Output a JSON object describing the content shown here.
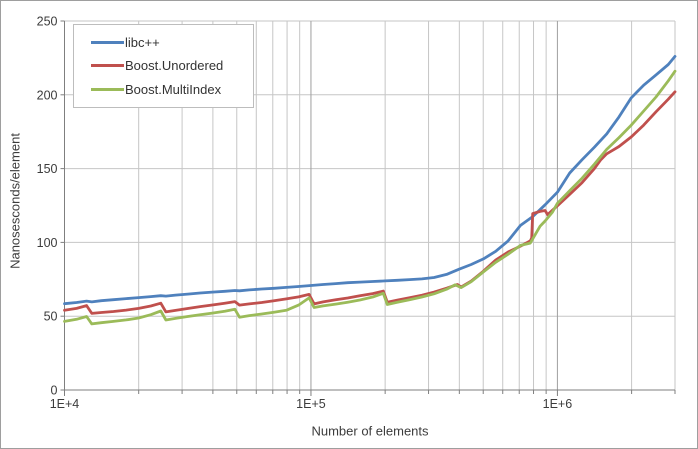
{
  "chart_data": {
    "type": "line",
    "title": "",
    "xlabel": "Number of elements",
    "ylabel": "Nanosesconds/element",
    "x_scale": "log",
    "x_min": 10000,
    "x_max": 3000000,
    "y_min": 0,
    "y_max": 250,
    "y_tick_step": 50,
    "x_tick_labels": [
      {
        "value": 10000,
        "label": "1E+4"
      },
      {
        "value": 100000,
        "label": "1E+5"
      },
      {
        "value": 1000000,
        "label": "1E+6"
      }
    ],
    "y_tick_labels": [
      "0",
      "50",
      "100",
      "150",
      "200",
      "250"
    ],
    "grid": {
      "minor_color": "#c6c6c6",
      "major_color": "#9f9f9f",
      "axis_color": "#7f7f7f",
      "text_color": "#3c3c3c",
      "grid_on": true
    },
    "legend_position": "top-left",
    "series": [
      {
        "name": "libc++",
        "color": "#4F81BD",
        "points": [
          [
            10000,
            58.5
          ],
          [
            11200,
            59.3
          ],
          [
            12289,
            60.2
          ],
          [
            12900,
            59.7
          ],
          [
            14100,
            60.5
          ],
          [
            15800,
            61.2
          ],
          [
            17800,
            61.9
          ],
          [
            20000,
            62.6
          ],
          [
            22400,
            63.3
          ],
          [
            24593,
            63.9
          ],
          [
            25800,
            63.6
          ],
          [
            28200,
            64.3
          ],
          [
            31600,
            65.0
          ],
          [
            35500,
            65.7
          ],
          [
            39800,
            66.3
          ],
          [
            44700,
            66.9
          ],
          [
            49157,
            67.4
          ],
          [
            51300,
            67.2
          ],
          [
            56200,
            67.8
          ],
          [
            63100,
            68.4
          ],
          [
            70800,
            68.9
          ],
          [
            79400,
            69.5
          ],
          [
            89100,
            70.1
          ],
          [
            100000,
            70.8
          ],
          [
            112000,
            71.5
          ],
          [
            126000,
            72.1
          ],
          [
            141000,
            72.7
          ],
          [
            158000,
            73.1
          ],
          [
            178000,
            73.5
          ],
          [
            200000,
            73.9
          ],
          [
            224000,
            74.3
          ],
          [
            251000,
            74.8
          ],
          [
            282000,
            75.3
          ],
          [
            316000,
            76.2
          ],
          [
            355000,
            78.3
          ],
          [
            398000,
            81.8
          ],
          [
            447000,
            85.0
          ],
          [
            501000,
            88.8
          ],
          [
            562000,
            94.0
          ],
          [
            631000,
            101.0
          ],
          [
            708000,
            111.5
          ],
          [
            794000,
            117.5
          ],
          [
            891000,
            125.5
          ],
          [
            1000000,
            134.0
          ],
          [
            1122000,
            147.0
          ],
          [
            1259000,
            156.0
          ],
          [
            1413000,
            164.5
          ],
          [
            1585000,
            173.5
          ],
          [
            1778000,
            185.0
          ],
          [
            1995000,
            198.0
          ],
          [
            2239000,
            206.5
          ],
          [
            2512000,
            213.5
          ],
          [
            2818000,
            220.5
          ],
          [
            3000000,
            226.0
          ]
        ]
      },
      {
        "name": "Boost.Unordered",
        "color": "#C0504D",
        "points": [
          [
            10000,
            54.0
          ],
          [
            11200,
            55.3
          ],
          [
            12289,
            57.2
          ],
          [
            12900,
            51.9
          ],
          [
            14100,
            52.5
          ],
          [
            15800,
            53.2
          ],
          [
            17800,
            54.1
          ],
          [
            20000,
            55.3
          ],
          [
            22400,
            56.9
          ],
          [
            24593,
            58.8
          ],
          [
            25800,
            52.9
          ],
          [
            28200,
            53.9
          ],
          [
            31600,
            55.2
          ],
          [
            35500,
            56.5
          ],
          [
            39800,
            57.6
          ],
          [
            44700,
            58.8
          ],
          [
            49157,
            59.9
          ],
          [
            51300,
            57.5
          ],
          [
            56200,
            58.3
          ],
          [
            63100,
            59.3
          ],
          [
            70800,
            60.4
          ],
          [
            79400,
            61.7
          ],
          [
            89100,
            63.1
          ],
          [
            98317,
            64.8
          ],
          [
            103000,
            58.3
          ],
          [
            112000,
            59.7
          ],
          [
            126000,
            61.1
          ],
          [
            141000,
            62.3
          ],
          [
            158000,
            63.8
          ],
          [
            178000,
            65.3
          ],
          [
            196613,
            67.0
          ],
          [
            204000,
            59.5
          ],
          [
            224000,
            60.9
          ],
          [
            251000,
            62.5
          ],
          [
            282000,
            64.2
          ],
          [
            316000,
            66.3
          ],
          [
            355000,
            69.0
          ],
          [
            393241,
            71.5
          ],
          [
            407000,
            69.8
          ],
          [
            447000,
            73.8
          ],
          [
            501000,
            80.5
          ],
          [
            562000,
            88.0
          ],
          [
            631000,
            93.5
          ],
          [
            708000,
            97.5
          ],
          [
            776000,
            101.0
          ],
          [
            786433,
            103.0
          ],
          [
            794000,
            119.5
          ],
          [
            851000,
            121.0
          ],
          [
            891000,
            121.6
          ],
          [
            912000,
            118.8
          ],
          [
            955000,
            121.8
          ],
          [
            1000000,
            124.8
          ],
          [
            1122000,
            132.5
          ],
          [
            1259000,
            140.5
          ],
          [
            1413000,
            150.0
          ],
          [
            1500000,
            156.0
          ],
          [
            1585000,
            160.0
          ],
          [
            1698000,
            163.0
          ],
          [
            1778000,
            165.0
          ],
          [
            1995000,
            171.5
          ],
          [
            2239000,
            179.5
          ],
          [
            2512000,
            188.5
          ],
          [
            2818000,
            197.0
          ],
          [
            3000000,
            202.0
          ]
        ]
      },
      {
        "name": "Boost.MultiIndex",
        "color": "#9BBB59",
        "points": [
          [
            10000,
            46.5
          ],
          [
            11200,
            47.9
          ],
          [
            12289,
            49.8
          ],
          [
            12900,
            44.8
          ],
          [
            14100,
            45.6
          ],
          [
            15800,
            46.5
          ],
          [
            17800,
            47.5
          ],
          [
            20000,
            48.8
          ],
          [
            22400,
            51.0
          ],
          [
            24593,
            53.5
          ],
          [
            25800,
            47.4
          ],
          [
            28200,
            48.5
          ],
          [
            31600,
            49.8
          ],
          [
            35500,
            51.0
          ],
          [
            39800,
            52.1
          ],
          [
            44700,
            53.4
          ],
          [
            49157,
            54.7
          ],
          [
            51300,
            49.3
          ],
          [
            56200,
            50.4
          ],
          [
            63100,
            51.5
          ],
          [
            70800,
            52.7
          ],
          [
            79400,
            54.0
          ],
          [
            89100,
            57.5
          ],
          [
            98317,
            62.4
          ],
          [
            103000,
            55.9
          ],
          [
            112000,
            57.0
          ],
          [
            126000,
            58.2
          ],
          [
            141000,
            59.5
          ],
          [
            158000,
            61.0
          ],
          [
            178000,
            63.0
          ],
          [
            196613,
            65.5
          ],
          [
            204000,
            57.9
          ],
          [
            224000,
            59.4
          ],
          [
            251000,
            61.1
          ],
          [
            282000,
            63.0
          ],
          [
            316000,
            65.2
          ],
          [
            355000,
            68.3
          ],
          [
            385000,
            71.3
          ],
          [
            407000,
            69.4
          ],
          [
            447000,
            73.4
          ],
          [
            501000,
            80.0
          ],
          [
            562000,
            86.5
          ],
          [
            631000,
            92.0
          ],
          [
            708000,
            98.0
          ],
          [
            776000,
            99.5
          ],
          [
            851000,
            111.0
          ],
          [
            891000,
            114.5
          ],
          [
            955000,
            120.5
          ],
          [
            1000000,
            126.5
          ],
          [
            1122000,
            135.0
          ],
          [
            1259000,
            143.5
          ],
          [
            1413000,
            153.0
          ],
          [
            1585000,
            163.0
          ],
          [
            1778000,
            171.0
          ],
          [
            1995000,
            179.5
          ],
          [
            2239000,
            189.0
          ],
          [
            2512000,
            198.5
          ],
          [
            2818000,
            209.5
          ],
          [
            3000000,
            216.0
          ]
        ]
      }
    ]
  }
}
